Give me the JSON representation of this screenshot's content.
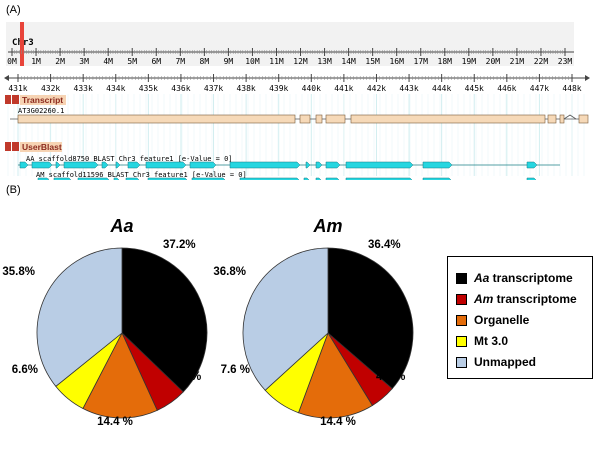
{
  "panel_a_label": "(A)",
  "panel_b_label": "(B)",
  "genome_browser": {
    "chromosome": "Chr3",
    "overview_ticks": [
      "0M",
      "1M",
      "2M",
      "3M",
      "4M",
      "5M",
      "6M",
      "7M",
      "8M",
      "9M",
      "10M",
      "11M",
      "12M",
      "13M",
      "14M",
      "15M",
      "16M",
      "17M",
      "18M",
      "19M",
      "20M",
      "21M",
      "22M",
      "23M"
    ],
    "detail_ticks": [
      "431k",
      "432k",
      "433k",
      "434k",
      "435k",
      "436k",
      "437k",
      "438k",
      "439k",
      "440k",
      "441k",
      "442k",
      "443k",
      "444k",
      "445k",
      "446k",
      "447k",
      "448k"
    ],
    "tracks": [
      {
        "name": "Transcript",
        "features": [
          "AT3G02260.1"
        ]
      },
      {
        "name": "UserBlast",
        "features": [
          "AA_scaffold8750 BLAST Chr3 feature1 [e-Value = 0]",
          "AM_scaffold11596 BLAST Chr3 feature1 [e-Value = 0]"
        ]
      }
    ],
    "colors": {
      "transcript": "#f6d9b8",
      "blast": "#25d6e0",
      "track_label": "#f6d3b3",
      "highlight": "#e8443a",
      "grid": "#d2eef0"
    }
  },
  "chart_data": [
    {
      "type": "pie",
      "title": "Aa",
      "labels": [
        "Aa transcriptome",
        "Am transcriptome",
        "Organelle",
        "Mt 3.0",
        "Unmapped"
      ],
      "values": [
        37.2,
        6.0,
        14.4,
        6.6,
        35.8
      ],
      "value_labels": [
        "37.2%",
        "6.0%",
        "14.4 %",
        "6.6%",
        "35.8%"
      ],
      "colors": [
        "#000000",
        "#c00000",
        "#e46c0a",
        "#ffff00",
        "#b9cde5"
      ],
      "start_angle_deg": 0,
      "direction": "clockwise"
    },
    {
      "type": "pie",
      "title": "Am",
      "labels": [
        "Aa transcriptome",
        "Am transcriptome",
        "Organelle",
        "Mt 3.0",
        "Unmapped"
      ],
      "values": [
        36.4,
        4.9,
        14.4,
        7.6,
        36.8
      ],
      "value_labels": [
        "36.4%",
        "4.9 %",
        "14.4 %",
        "7.6 %",
        "36.8%"
      ],
      "colors": [
        "#000000",
        "#c00000",
        "#e46c0a",
        "#ffff00",
        "#b9cde5"
      ],
      "start_angle_deg": 0,
      "direction": "clockwise"
    }
  ],
  "legend": {
    "placement": "right",
    "items": [
      {
        "italic": "Aa",
        "text": " transcriptome",
        "color": "#000000"
      },
      {
        "italic": "Am",
        "text": " transcriptome",
        "color": "#c00000"
      },
      {
        "italic": "",
        "text": "Organelle",
        "color": "#e46c0a"
      },
      {
        "italic": "",
        "text": "Mt 3.0",
        "color": "#ffff00"
      },
      {
        "italic": "",
        "text": "Unmapped",
        "color": "#b9cde5"
      }
    ]
  }
}
